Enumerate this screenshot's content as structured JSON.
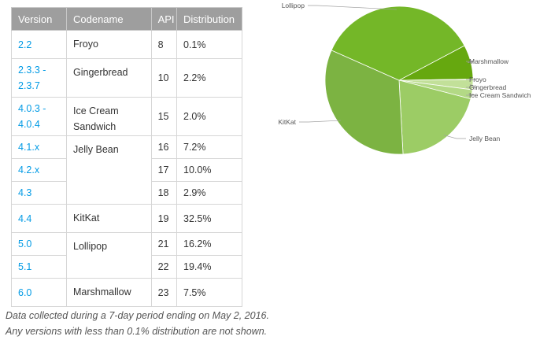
{
  "table": {
    "headers": {
      "version": "Version",
      "codename": "Codename",
      "api": "API",
      "distribution": "Distribution"
    },
    "rows": [
      {
        "version": "2.2",
        "codename": "Froyo",
        "api": "8",
        "distribution": "0.1%"
      },
      {
        "version": "2.3.3 -\n2.3.7",
        "codename": "Gingerbread",
        "api": "10",
        "distribution": "2.2%"
      },
      {
        "version": "4.0.3 -\n4.0.4",
        "codename": "Ice Cream\nSandwich",
        "api": "15",
        "distribution": "2.0%"
      },
      {
        "version": "4.1.x",
        "codename": "Jelly Bean",
        "api": "16",
        "distribution": "7.2%"
      },
      {
        "version": "4.2.x",
        "codename": "",
        "api": "17",
        "distribution": "10.0%"
      },
      {
        "version": "4.3",
        "codename": "",
        "api": "18",
        "distribution": "2.9%"
      },
      {
        "version": "4.4",
        "codename": "KitKat",
        "api": "19",
        "distribution": "32.5%"
      },
      {
        "version": "5.0",
        "codename": "Lollipop",
        "api": "21",
        "distribution": "16.2%"
      },
      {
        "version": "5.1",
        "codename": "",
        "api": "22",
        "distribution": "19.4%"
      },
      {
        "version": "6.0",
        "codename": "Marshmallow",
        "api": "23",
        "distribution": "7.5%"
      }
    ]
  },
  "footnotes": [
    "Data collected during a 7-day period ending on May 2, 2016.",
    "Any versions with less than 0.1% distribution are not shown."
  ],
  "colors": {
    "header_bg": "#9e9e9e",
    "version_link": "#039be5",
    "slices": [
      "#cddc39",
      "#c0de7f",
      "#b4d96a",
      "#9fcc5a",
      "#7cb342",
      "#6fb12a",
      "#4caf50"
    ]
  },
  "chart_data": {
    "type": "pie",
    "slices": [
      {
        "label": "Marshmallow",
        "value": 7.5,
        "color": "#66a80f"
      },
      {
        "label": "Froyo",
        "value": 0.1,
        "color": "#d4e9b3"
      },
      {
        "label": "Gingerbread",
        "value": 2.2,
        "color": "#c2e099"
      },
      {
        "label": "Ice Cream Sandwich",
        "value": 2.0,
        "color": "#b3d985"
      },
      {
        "label": "Jelly Bean",
        "value": 20.1,
        "color": "#9ccc65"
      },
      {
        "label": "KitKat",
        "value": 32.5,
        "color": "#7cb342"
      },
      {
        "label": "Lollipop",
        "value": 35.6,
        "color": "#74b728"
      }
    ]
  }
}
